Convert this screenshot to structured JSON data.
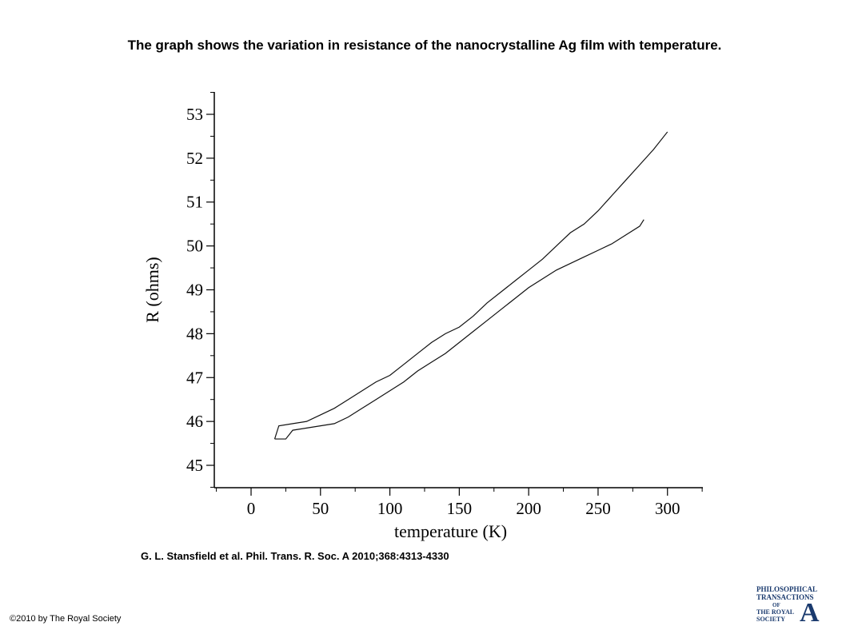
{
  "title": "The graph shows the variation in resistance of the nanocrystalline Ag film with temperature.",
  "citation": "G. L. Stansfield et al. Phil. Trans. R. Soc. A 2010;368:4313-4330",
  "copyright": "©2010 by The Royal Society",
  "logo": [
    "PHILOSOPHICAL",
    "TRANSACTIONS",
    "OF",
    "THE ROYAL",
    "SOCIETY",
    "A"
  ],
  "chart_data": {
    "type": "line",
    "x_label": "temperature (K)",
    "y_label": "R (ohms)",
    "xlim": [
      -26.5,
      325.5
    ],
    "ylim": [
      44.49,
      53.51
    ],
    "xticks": [
      0,
      50,
      100,
      150,
      200,
      250,
      300
    ],
    "xminorticks": [
      -25,
      25,
      75,
      125,
      175,
      225,
      275,
      325
    ],
    "yticks": [
      45,
      46,
      47,
      48,
      49,
      50,
      51,
      52,
      53
    ],
    "yminorticks": [
      44.5,
      45.5,
      46.5,
      47.5,
      48.5,
      49.5,
      50.5,
      51.5,
      52.5,
      53.5
    ],
    "series": [
      {
        "color": "#111111",
        "x": [
          17,
          20,
          30,
          40,
          50,
          60,
          70,
          80,
          90,
          100,
          110,
          120,
          130,
          140,
          150,
          160,
          170,
          180,
          190,
          200,
          210,
          220,
          230,
          240,
          250,
          260,
          270,
          280,
          290,
          300
        ],
        "values": [
          45.6,
          45.9,
          45.95,
          46.0,
          46.15,
          46.3,
          46.5,
          46.7,
          46.9,
          47.05,
          47.3,
          47.55,
          47.8,
          48.0,
          48.15,
          48.4,
          48.7,
          48.95,
          49.2,
          49.45,
          49.7,
          50.0,
          50.3,
          50.5,
          50.8,
          51.15,
          51.5,
          51.85,
          52.2,
          52.6
        ]
      },
      {
        "color": "#111111",
        "x": [
          17,
          25,
          30,
          40,
          50,
          60,
          70,
          80,
          90,
          100,
          110,
          120,
          130,
          140,
          150,
          160,
          170,
          180,
          190,
          200,
          210,
          220,
          230,
          240,
          250,
          260,
          270,
          280,
          283
        ],
        "values": [
          45.6,
          45.6,
          45.8,
          45.85,
          45.9,
          45.95,
          46.1,
          46.3,
          46.5,
          46.7,
          46.9,
          47.15,
          47.35,
          47.55,
          47.8,
          48.05,
          48.3,
          48.55,
          48.8,
          49.05,
          49.25,
          49.45,
          49.6,
          49.75,
          49.9,
          50.05,
          50.25,
          50.45,
          50.6
        ]
      }
    ]
  }
}
